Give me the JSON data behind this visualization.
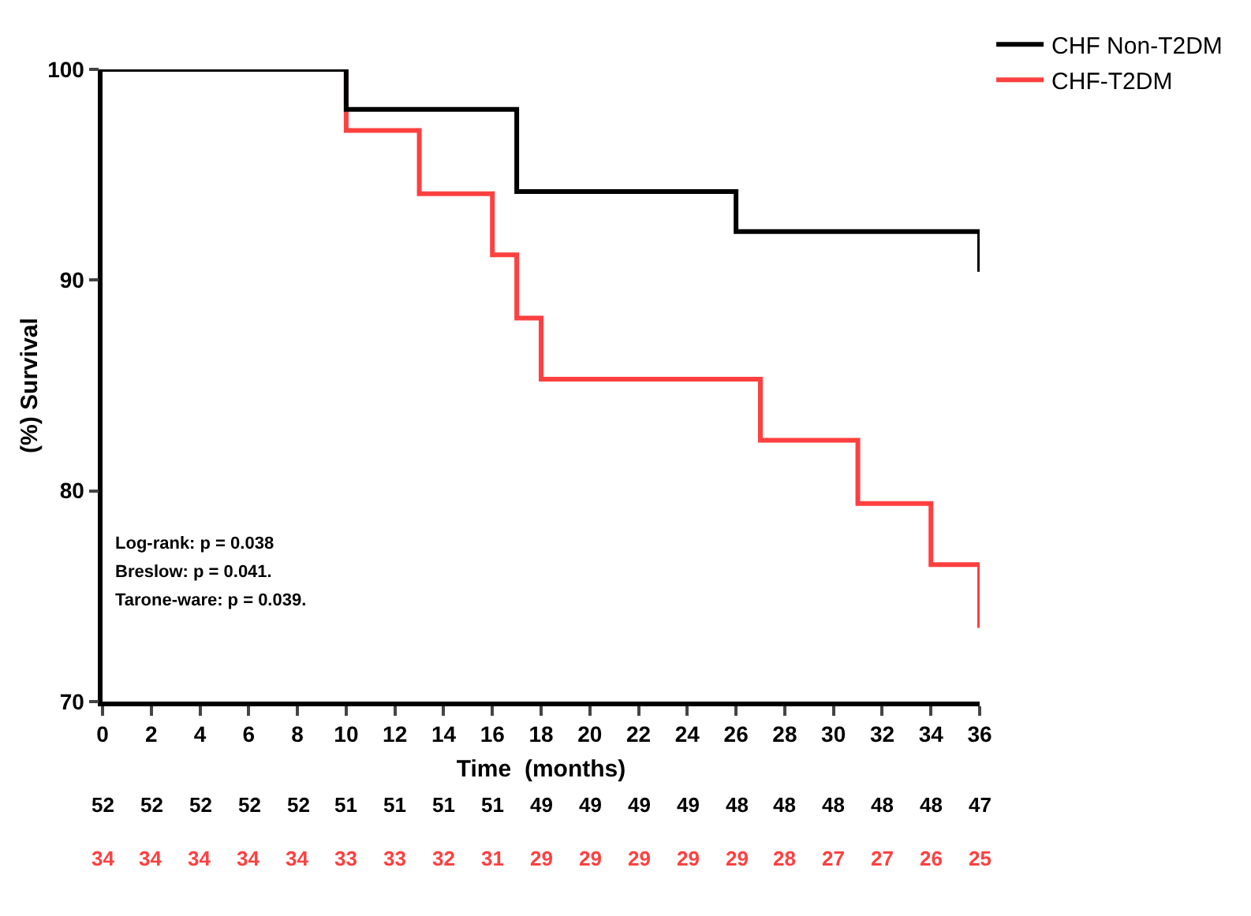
{
  "chart_data": {
    "type": "step",
    "xlabel": "Time  (months)",
    "ylabel": "(%) Survival",
    "xlim": [
      0,
      36
    ],
    "xticks": [
      0,
      2,
      4,
      6,
      8,
      10,
      12,
      14,
      16,
      18,
      20,
      22,
      24,
      26,
      28,
      30,
      32,
      34,
      36
    ],
    "ylim": [
      70,
      100
    ],
    "yticks": [
      70,
      80,
      90,
      100
    ],
    "grid": false,
    "legend": "top right",
    "series": [
      {
        "name": "CHF Non-T2DM",
        "color": "#000000",
        "x": [
          0,
          10,
          17,
          26,
          36,
          36
        ],
        "values": [
          100,
          98.1,
          94.2,
          92.3,
          92.3,
          90.4
        ]
      },
      {
        "name": "CHF-T2DM",
        "color": "#ff4040",
        "x": [
          0,
          10,
          13,
          16,
          17,
          18,
          27,
          31,
          34,
          36,
          36
        ],
        "values": [
          100,
          97.1,
          94.1,
          91.2,
          88.2,
          85.3,
          82.4,
          79.4,
          76.5,
          76.5,
          73.5
        ]
      }
    ],
    "annotations": [
      "Log-rank: p = 0.038",
      "Breslow: p = 0.041.",
      "Tarone-ware: p = 0.039.",
      "52 52 52 52 52 51 51 51 51 49 49 49 49 48 48 48 48 48 47",
      "34 34 34 34 34 33 33 32 31 29 29 29 29 29 28 27 27 26 25"
    ]
  }
}
